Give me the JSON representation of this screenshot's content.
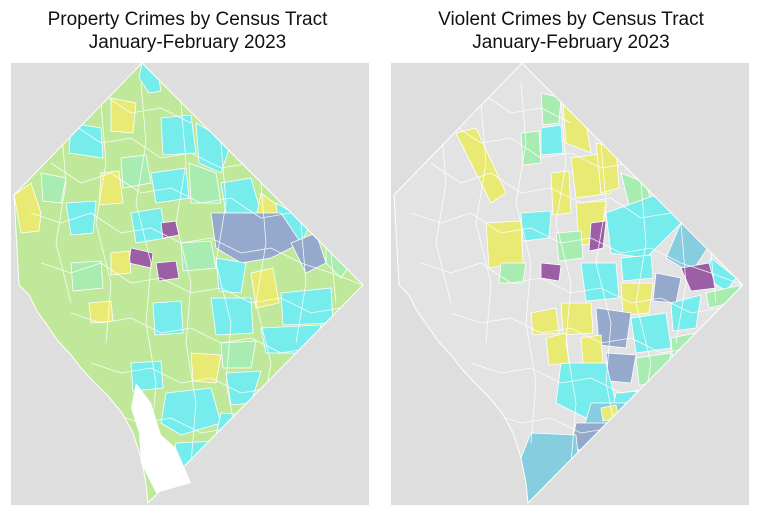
{
  "maps": [
    {
      "title_line1": "Property Crimes by Census Tract",
      "title_line2": "January-February 2023",
      "colors": {
        "background": "#dedede",
        "boundary": "#ffffff",
        "green": "#bfe89a",
        "light_green": "#a9ecb2",
        "cyan": "#76ecec",
        "yellow": "#e9ea73",
        "slate_blue": "#95a9cd",
        "purple": "#9c5fa6"
      }
    },
    {
      "title_line1": "Violent Crimes by Census Tract",
      "title_line2": "January-February 2023",
      "colors": {
        "background": "#dedede",
        "boundary": "#ffffff",
        "empty": "#e3e3e3",
        "light_green": "#a9ecb2",
        "cyan": "#76ecec",
        "yellow": "#e9ea73",
        "blue": "#86cde0",
        "slate_blue": "#95a9cd",
        "purple": "#9c5fa6"
      }
    }
  ]
}
